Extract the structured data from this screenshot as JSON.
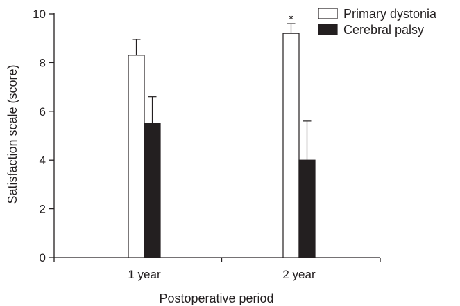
{
  "chart_data": {
    "type": "bar",
    "xlabel": "Postoperative period",
    "ylabel": "Satisfaction scale (score)",
    "ylim": [
      0,
      10
    ],
    "yticks": [
      0,
      2,
      4,
      6,
      8,
      10
    ],
    "categories": [
      "1 year",
      "2 year"
    ],
    "series": [
      {
        "name": "Primary dystonia",
        "color": "#ffffff",
        "values": [
          8.3,
          9.2
        ],
        "errors": [
          0.65,
          0.4
        ]
      },
      {
        "name": "Cerebral palsy",
        "color": "#231f20",
        "values": [
          5.5,
          4.0
        ],
        "errors": [
          1.1,
          1.6
        ]
      }
    ],
    "annotations": [
      {
        "text": "*",
        "category": "2 year",
        "series": "Primary dystonia"
      }
    ],
    "legend_position": "top-right",
    "grid": false
  }
}
